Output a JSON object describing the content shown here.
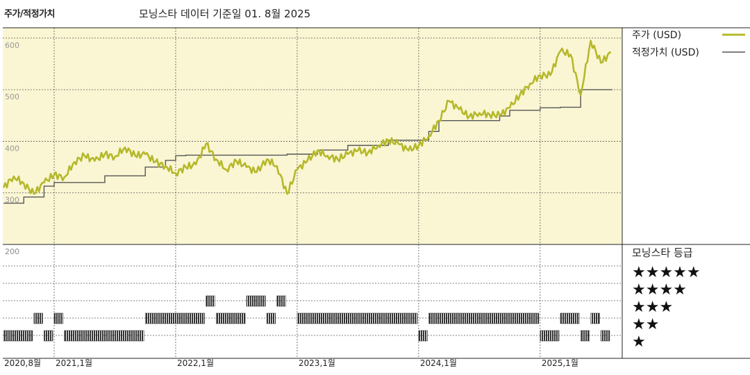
{
  "chart_data": {
    "type": "line",
    "title": "주가/적정가치",
    "subtitle": "모닝스타 데이터 기준일 01. 8월 2025",
    "ylim": [
      200,
      620
    ],
    "y_ticks": [
      200,
      300,
      400,
      500,
      600
    ],
    "x_tick_labels": [
      "2020,8월",
      "2021,1월",
      "2022,1월",
      "2023,1월",
      "2024,1월",
      "2025,1월"
    ],
    "grid": true,
    "legend_position": "right",
    "series": [
      {
        "name": "주가 (USD)",
        "color": "#b5b82a",
        "points": [
          [
            "2020-08",
            310
          ],
          [
            "2020-09",
            332
          ],
          [
            "2020-10",
            318
          ],
          [
            "2020-11",
            298
          ],
          [
            "2020-12",
            320
          ],
          [
            "2021-01",
            335
          ],
          [
            "2021-02",
            330
          ],
          [
            "2021-03",
            360
          ],
          [
            "2021-04",
            372
          ],
          [
            "2021-05",
            362
          ],
          [
            "2021-06",
            375
          ],
          [
            "2021-07",
            370
          ],
          [
            "2021-08",
            388
          ],
          [
            "2021-09",
            372
          ],
          [
            "2021-10",
            375
          ],
          [
            "2021-11",
            360
          ],
          [
            "2021-12",
            352
          ],
          [
            "2022-01",
            338
          ],
          [
            "2022-02",
            350
          ],
          [
            "2022-03",
            355
          ],
          [
            "2022-04",
            395
          ],
          [
            "2022-05",
            365
          ],
          [
            "2022-06",
            345
          ],
          [
            "2022-07",
            362
          ],
          [
            "2022-08",
            350
          ],
          [
            "2022-09",
            340
          ],
          [
            "2022-10",
            365
          ],
          [
            "2022-11",
            352
          ],
          [
            "2022-12",
            298
          ],
          [
            "2023-01",
            345
          ],
          [
            "2023-02",
            362
          ],
          [
            "2023-03",
            382
          ],
          [
            "2023-04",
            372
          ],
          [
            "2023-05",
            365
          ],
          [
            "2023-06",
            375
          ],
          [
            "2023-07",
            382
          ],
          [
            "2023-08",
            378
          ],
          [
            "2023-09",
            392
          ],
          [
            "2023-10",
            402
          ],
          [
            "2023-11",
            395
          ],
          [
            "2023-12",
            382
          ],
          [
            "2024-01",
            392
          ],
          [
            "2024-02",
            410
          ],
          [
            "2024-03",
            440
          ],
          [
            "2024-04",
            478
          ],
          [
            "2024-05",
            462
          ],
          [
            "2024-06",
            448
          ],
          [
            "2024-07",
            455
          ],
          [
            "2024-08",
            452
          ],
          [
            "2024-09",
            450
          ],
          [
            "2024-10",
            465
          ],
          [
            "2024-11",
            490
          ],
          [
            "2024-12",
            512
          ],
          [
            "2025-01",
            528
          ],
          [
            "2025-02",
            528
          ],
          [
            "2025-03",
            575
          ],
          [
            "2025-04",
            568
          ],
          [
            "2025-05",
            490
          ],
          [
            "2025-06",
            595
          ],
          [
            "2025-07",
            552
          ],
          [
            "2025-08",
            572
          ]
        ]
      },
      {
        "name": "적정가치 (USD)",
        "color": "#555555",
        "points": [
          [
            "2020-08",
            280
          ],
          [
            "2020-10",
            292
          ],
          [
            "2020-12",
            313
          ],
          [
            "2021-01",
            320
          ],
          [
            "2021-06",
            333
          ],
          [
            "2021-10",
            350
          ],
          [
            "2021-12",
            363
          ],
          [
            "2022-01",
            372
          ],
          [
            "2022-02",
            373
          ],
          [
            "2022-12",
            375
          ],
          [
            "2023-03",
            383
          ],
          [
            "2023-06",
            392
          ],
          [
            "2023-10",
            402
          ],
          [
            "2024-02",
            419
          ],
          [
            "2024-03",
            440
          ],
          [
            "2024-09",
            449
          ],
          [
            "2024-10",
            460
          ],
          [
            "2025-01",
            465
          ],
          [
            "2025-03",
            466
          ],
          [
            "2025-05",
            500
          ],
          [
            "2025-08",
            500
          ]
        ]
      }
    ]
  },
  "rating_panel": {
    "title": "모닝스타 등급",
    "levels": [
      {
        "stars": "★★★★★",
        "value": 5
      },
      {
        "stars": "★★★★",
        "value": 4
      },
      {
        "stars": "★★★",
        "value": 3
      },
      {
        "stars": "★★",
        "value": 2
      },
      {
        "stars": "★",
        "value": 1
      }
    ],
    "segments": [
      {
        "start": "2020-08",
        "end": "2020-11",
        "rating": 2
      },
      {
        "start": "2020-11",
        "end": "2020-12",
        "rating": 3
      },
      {
        "start": "2020-12",
        "end": "2021-01",
        "rating": 2
      },
      {
        "start": "2021-01",
        "end": "2021-02",
        "rating": 3
      },
      {
        "start": "2021-02",
        "end": "2021-10",
        "rating": 2
      },
      {
        "start": "2021-10",
        "end": "2022-04",
        "rating": 3
      },
      {
        "start": "2022-04",
        "end": "2022-05",
        "rating": 4
      },
      {
        "start": "2022-05",
        "end": "2022-08",
        "rating": 3
      },
      {
        "start": "2022-08",
        "end": "2022-10",
        "rating": 4
      },
      {
        "start": "2022-10",
        "end": "2022-11",
        "rating": 3
      },
      {
        "start": "2022-11",
        "end": "2022-12",
        "rating": 4
      },
      {
        "start": "2023-01",
        "end": "2024-01",
        "rating": 3
      },
      {
        "start": "2024-01",
        "end": "2024-02",
        "rating": 2
      },
      {
        "start": "2024-02",
        "end": "2025-01",
        "rating": 3
      },
      {
        "start": "2025-01",
        "end": "2025-03",
        "rating": 2
      },
      {
        "start": "2025-03",
        "end": "2025-05",
        "rating": 3
      },
      {
        "start": "2025-05",
        "end": "2025-06",
        "rating": 2
      },
      {
        "start": "2025-06",
        "end": "2025-07",
        "rating": 3
      },
      {
        "start": "2025-07",
        "end": "2025-08",
        "rating": 2
      }
    ]
  }
}
